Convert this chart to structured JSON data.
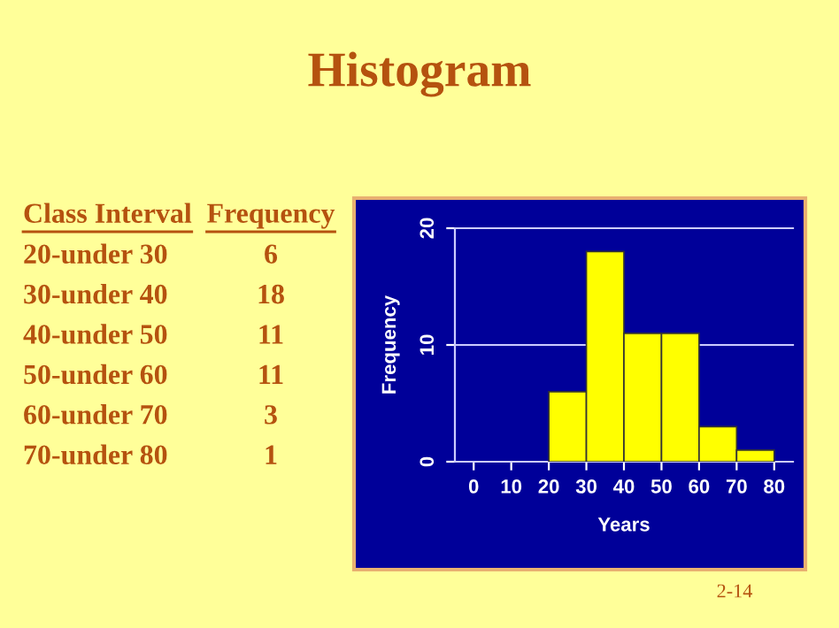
{
  "chart_data": {
    "type": "histogram",
    "title": "Histogram",
    "xlabel": "Years",
    "ylabel": "Frequency",
    "bins": [
      20,
      30,
      40,
      50,
      60,
      70,
      80
    ],
    "values": [
      6,
      18,
      11,
      11,
      3,
      1
    ],
    "color": "#ffff00",
    "xlim": [
      -5,
      85
    ],
    "xticks": [
      0,
      10,
      20,
      30,
      40,
      50,
      60,
      70,
      80
    ],
    "ylim": [
      0,
      20
    ],
    "yticks": [
      0,
      10,
      20
    ],
    "ref_lines": [
      {
        "axis": "y",
        "value": 10,
        "color": "#ccccff"
      },
      {
        "axis": "y",
        "value": 20,
        "color": "#ccccff"
      }
    ],
    "annotations": [
      "Class Interval",
      "Frequency",
      "20-under 30",
      "30-under 40",
      "40-under 50",
      "50-under 60",
      "60-under 70",
      "70-under 80",
      "2-14",
      "6",
      "18",
      "11",
      "11",
      "3",
      "1"
    ]
  }
}
